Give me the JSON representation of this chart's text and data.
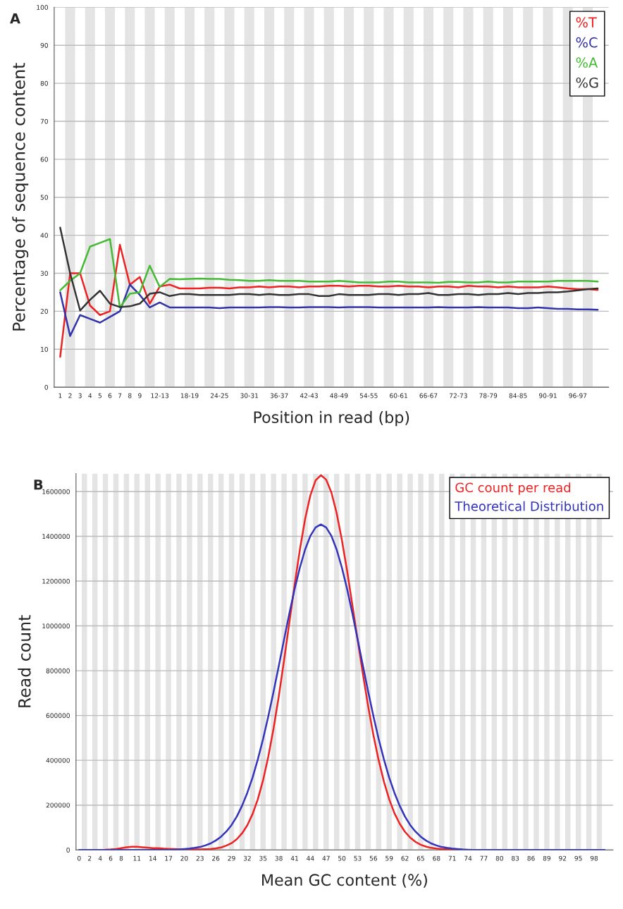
{
  "chart_data": [
    {
      "type": "line",
      "title": "A",
      "xlabel": "Position in read (bp)",
      "ylabel": "Percentage of sequence content",
      "categories": [
        "1",
        "2",
        "3",
        "4",
        "5",
        "6",
        "7",
        "8",
        "9",
        null,
        "12-13",
        null,
        null,
        "18-19",
        null,
        null,
        "24-25",
        null,
        null,
        "30-31",
        null,
        null,
        "36-37",
        null,
        null,
        "42-43",
        null,
        null,
        "48-49",
        null,
        null,
        "54-55",
        null,
        null,
        "60-61",
        null,
        null,
        "66-67",
        null,
        null,
        "72-73",
        null,
        null,
        "78-79",
        null,
        null,
        "84-85",
        null,
        null,
        "90-91",
        null,
        null,
        "96-97",
        null,
        null
      ],
      "series": [
        {
          "name": "%T",
          "color": "#ee2222",
          "values": [
            8,
            30,
            30,
            21.5,
            19,
            20,
            37.5,
            27,
            29,
            22,
            26.5,
            27,
            26,
            26,
            26,
            26.2,
            26.2,
            26,
            26.3,
            26.3,
            26.5,
            26.3,
            26.5,
            26.5,
            26.3,
            26.5,
            26.5,
            26.7,
            26.7,
            26.5,
            26.7,
            26.7,
            26.5,
            26.5,
            26.7,
            26.5,
            26.5,
            26.3,
            26.5,
            26.5,
            26.3,
            26.7,
            26.5,
            26.5,
            26.3,
            26.5,
            26.3,
            26.3,
            26.3,
            26.5,
            26.3,
            26,
            25.8,
            25.8,
            25.6
          ]
        },
        {
          "name": "%C",
          "color": "#3333aa",
          "values": [
            25,
            13.5,
            19,
            18,
            17,
            18.5,
            20,
            27,
            24.3,
            21,
            22.3,
            21,
            21,
            21,
            21,
            21,
            20.8,
            21,
            21,
            21,
            21,
            21.1,
            21.1,
            21,
            21,
            21.1,
            21.1,
            21.1,
            21,
            21.1,
            21.1,
            21.1,
            21,
            21,
            21,
            21,
            21,
            21,
            21.1,
            21,
            21,
            21,
            21.1,
            21,
            21,
            21,
            20.8,
            20.8,
            21,
            20.8,
            20.6,
            20.6,
            20.5,
            20.5,
            20.4
          ]
        },
        {
          "name": "%A",
          "color": "#44bb33",
          "values": [
            25.5,
            28,
            30,
            37,
            38,
            39,
            21,
            24.6,
            25,
            32,
            26.4,
            28.5,
            28.4,
            28.5,
            28.6,
            28.5,
            28.5,
            28.3,
            28.2,
            28,
            28,
            28.2,
            28,
            28,
            28,
            27.8,
            27.8,
            27.8,
            28,
            27.8,
            27.6,
            27.6,
            27.6,
            27.8,
            27.8,
            27.6,
            27.6,
            27.6,
            27.5,
            27.7,
            27.7,
            27.6,
            27.6,
            27.8,
            27.6,
            27.6,
            27.8,
            27.8,
            27.8,
            27.8,
            28,
            28,
            28,
            28,
            27.8
          ]
        },
        {
          "name": "%G",
          "color": "#333333",
          "values": [
            42,
            30,
            20.2,
            23,
            25.4,
            22,
            21.1,
            21.3,
            22,
            24.6,
            25,
            24,
            24.5,
            24.5,
            24.3,
            24.3,
            24.3,
            24.3,
            24.5,
            24.5,
            24.3,
            24.5,
            24.3,
            24.3,
            24.5,
            24.5,
            24,
            24,
            24.5,
            24.3,
            24.3,
            24.3,
            24.5,
            24.5,
            24.3,
            24.5,
            24.5,
            24.8,
            24.3,
            24.3,
            24.5,
            24.5,
            24.3,
            24.5,
            24.5,
            24.8,
            24.5,
            24.8,
            24.8,
            25,
            25,
            25.2,
            25.5,
            25.8,
            26
          ]
        }
      ],
      "ylim": [
        0,
        100
      ],
      "yticks": [
        0,
        10,
        20,
        30,
        40,
        50,
        60,
        70,
        80,
        90,
        100
      ],
      "grid": "y",
      "legend": "top right"
    },
    {
      "type": "line",
      "title": "B",
      "xlabel": "Mean GC content (%)",
      "ylabel": "Read count",
      "categories": [
        "0",
        null,
        "2",
        null,
        "4",
        null,
        "6",
        null,
        "8",
        null,
        null,
        "11",
        null,
        null,
        "14",
        null,
        null,
        "17",
        null,
        null,
        "20",
        null,
        null,
        "23",
        null,
        null,
        "26",
        null,
        null,
        "29",
        null,
        null,
        "32",
        null,
        null,
        "35",
        null,
        null,
        "38",
        null,
        null,
        "41",
        null,
        null,
        "44",
        null,
        null,
        "47",
        null,
        null,
        "50",
        null,
        null,
        "53",
        null,
        null,
        "56",
        null,
        null,
        "59",
        null,
        null,
        "62",
        null,
        null,
        "65",
        null,
        null,
        "68",
        null,
        null,
        "71",
        null,
        null,
        "74",
        null,
        null,
        "77",
        null,
        null,
        "80",
        null,
        null,
        "83",
        null,
        null,
        "86",
        null,
        null,
        "89",
        null,
        null,
        "92",
        null,
        null,
        "95",
        null,
        null,
        "98",
        null,
        null
      ],
      "series": [
        {
          "name": "GC count per read",
          "color": "#ee2222",
          "values": [
            null,
            null,
            null,
            null,
            null,
            1000,
            2000,
            4000,
            8000,
            12000,
            14000,
            14000,
            12000,
            10000,
            8000,
            8000,
            6000,
            5000,
            4000,
            3000,
            3000,
            2000,
            2000,
            2000,
            3000,
            4000,
            7000,
            11000,
            19000,
            30000,
            48000,
            74000,
            110000,
            160000,
            226000,
            311000,
            417000,
            543000,
            687000,
            847000,
            1015000,
            1183000,
            1340000,
            1477000,
            1583000,
            1650000,
            1673000,
            1653000,
            1596000,
            1504000,
            1383000,
            1245000,
            1092000,
            937000,
            785000,
            641000,
            512000,
            400000,
            305000,
            226000,
            164000,
            117000,
            81000,
            55000,
            36000,
            23000,
            15000,
            9000,
            6000,
            4000,
            3000,
            2000,
            2000,
            null,
            null,
            null,
            null,
            null,
            null,
            null,
            null,
            null,
            null,
            null,
            null,
            null,
            null,
            null,
            null,
            null,
            null,
            null,
            null,
            null,
            null,
            null,
            null,
            null,
            null,
            null,
            null
          ]
        },
        {
          "name": "Theoretical Distribution",
          "color": "#3333bb",
          "values": [
            0,
            0,
            0,
            0,
            0,
            0,
            0,
            0,
            0,
            0,
            0,
            0,
            0,
            0,
            0,
            0,
            0,
            0,
            1000,
            2000,
            4000,
            6000,
            9000,
            13000,
            20000,
            29000,
            42000,
            59000,
            82000,
            111000,
            149000,
            197000,
            255000,
            323000,
            404000,
            495000,
            597000,
            707000,
            822000,
            940000,
            1055000,
            1164000,
            1260000,
            1341000,
            1402000,
            1440000,
            1453000,
            1440000,
            1402000,
            1341000,
            1260000,
            1164000,
            1055000,
            940000,
            822000,
            707000,
            597000,
            495000,
            404000,
            323000,
            255000,
            197000,
            149000,
            111000,
            82000,
            59000,
            42000,
            29000,
            20000,
            13000,
            9000,
            6000,
            4000,
            2000,
            1000,
            0,
            0,
            0,
            0,
            0,
            0,
            0,
            0,
            0,
            0,
            0,
            0,
            0,
            0,
            0,
            0,
            0,
            0,
            0,
            0,
            0,
            0,
            0,
            0,
            0,
            0
          ]
        }
      ],
      "ylim": [
        0,
        1680000
      ],
      "yticks": [
        0,
        200000,
        400000,
        600000,
        800000,
        1000000,
        1200000,
        1400000,
        1600000
      ],
      "grid": "y",
      "legend": "top right"
    }
  ]
}
